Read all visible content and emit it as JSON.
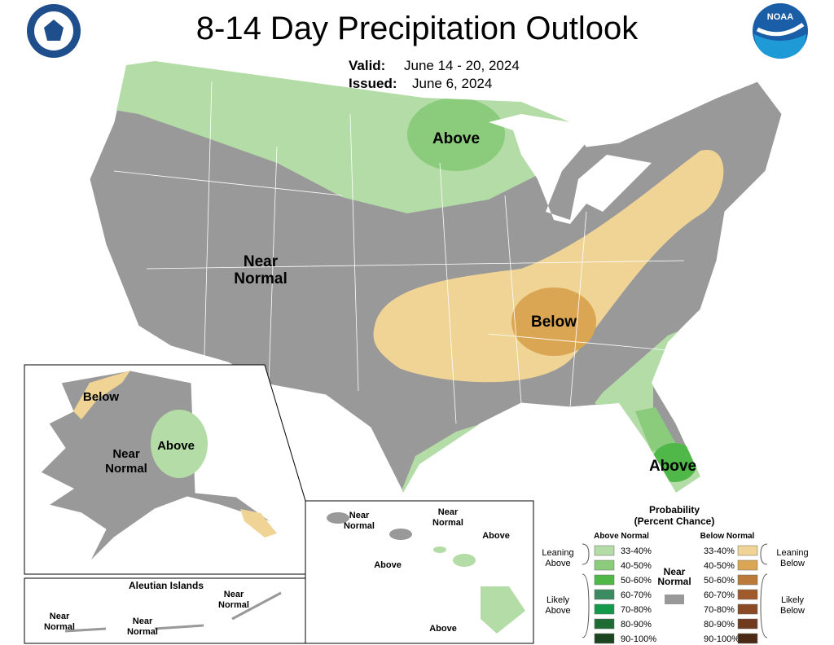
{
  "header": {
    "title": "8-14 Day Precipitation Outlook",
    "valid_label": "Valid:",
    "valid": "June 14 - 20, 2024",
    "issued_label": "Issued:",
    "issued": "June 6, 2024"
  },
  "conus_labels": [
    {
      "lines": [
        "Above"
      ]
    },
    {
      "lines": [
        "Near",
        "Normal"
      ]
    },
    {
      "lines": [
        "Below"
      ]
    },
    {
      "lines": [
        "Above"
      ]
    }
  ],
  "alaska_labels": [
    {
      "lines": [
        "Below"
      ]
    },
    {
      "lines": [
        "Near",
        "Normal"
      ]
    },
    {
      "lines": [
        "Above"
      ]
    }
  ],
  "aleutian": {
    "title": "Aleutian Islands",
    "labels": [
      {
        "lines": [
          "Near",
          "Normal"
        ]
      },
      {
        "lines": [
          "Near",
          "Normal"
        ]
      },
      {
        "lines": [
          "Near",
          "Normal"
        ]
      }
    ]
  },
  "hawaii_labels": [
    {
      "lines": [
        "Near",
        "Normal"
      ]
    },
    {
      "lines": [
        "Near",
        "Normal"
      ]
    },
    {
      "lines": [
        "Above"
      ]
    },
    {
      "lines": [
        "Above"
      ]
    },
    {
      "lines": [
        "Above"
      ]
    }
  ],
  "legend": {
    "title": "Probability",
    "subtitle": "(Percent Chance)",
    "above_heading": "Above Normal",
    "below_heading": "Below Normal",
    "near": {
      "lines": [
        "Near",
        "Normal"
      ],
      "color": "#999999"
    },
    "leaning_above": [
      "Leaning",
      "Above"
    ],
    "likely_above": [
      "Likely",
      "Above"
    ],
    "leaning_below": [
      "Leaning",
      "Below"
    ],
    "likely_below": [
      "Likely",
      "Below"
    ],
    "above_items": [
      {
        "label": "33-40%",
        "color": "#b3dca6"
      },
      {
        "label": "40-50%",
        "color": "#8acb7c"
      },
      {
        "label": "50-60%",
        "color": "#4fb848"
      },
      {
        "label": "60-70%",
        "color": "#3b8a60"
      },
      {
        "label": "70-80%",
        "color": "#129a4a"
      },
      {
        "label": "80-90%",
        "color": "#1e6b33"
      },
      {
        "label": "90-100%",
        "color": "#1b4520"
      }
    ],
    "below_items": [
      {
        "label": "33-40%",
        "color": "#f0d495"
      },
      {
        "label": "40-50%",
        "color": "#dba653"
      },
      {
        "label": "50-60%",
        "color": "#bb7a3a"
      },
      {
        "label": "60-70%",
        "color": "#a05a2c"
      },
      {
        "label": "70-80%",
        "color": "#8a4a25"
      },
      {
        "label": "80-90%",
        "color": "#703a1e"
      },
      {
        "label": "90-100%",
        "color": "#4a2a16"
      }
    ]
  }
}
